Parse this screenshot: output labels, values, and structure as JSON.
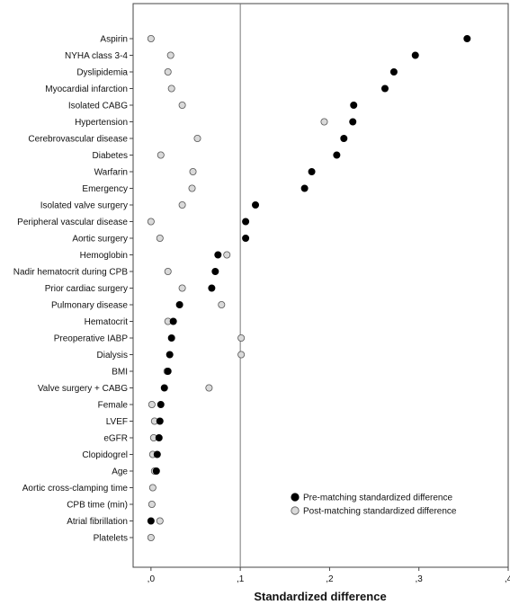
{
  "chart_data": {
    "type": "scatter",
    "xlabel": "Standardized difference",
    "xlim": [
      -0.02,
      0.4
    ],
    "xticks": [
      0,
      0.1,
      0.2,
      0.3,
      0.4
    ],
    "xtick_labels": [
      ",0",
      ",1",
      ",2",
      ",3",
      ",4"
    ],
    "reference_line_x": 0.1,
    "grid": false,
    "legend_position": "bottom-right",
    "categories": [
      "Aspirin",
      "NYHA class 3-4",
      "Dyslipidemia",
      "Myocardial infarction",
      "Isolated CABG",
      "Hypertension",
      "Cerebrovascular disease",
      "Diabetes",
      "Warfarin",
      "Emergency",
      "Isolated valve surgery",
      "Peripheral vascular disease",
      "Aortic surgery",
      "Hemoglobin",
      "Nadir hematocrit during CPB",
      "Prior cardiac surgery",
      "Pulmonary disease",
      "Hematocrit",
      "Preoperative IABP",
      "Dialysis",
      "BMI",
      "Valve surgery + CABG",
      "Female",
      "LVEF",
      "eGFR",
      "Clopidogrel",
      "Age",
      "Aortic cross-clamping time",
      "CPB time (min)",
      "Atrial fibrillation",
      "Platelets"
    ],
    "series": [
      {
        "name": "Pre-matching standardized difference",
        "color": "#000000",
        "values": [
          0.354,
          0.296,
          0.272,
          0.262,
          0.227,
          0.226,
          0.216,
          0.208,
          0.18,
          0.172,
          0.117,
          0.106,
          0.106,
          0.075,
          0.072,
          0.068,
          0.032,
          0.025,
          0.023,
          0.021,
          0.019,
          0.015,
          0.011,
          0.01,
          0.009,
          0.007,
          0.006,
          null,
          null,
          0.0,
          null
        ]
      },
      {
        "name": "Post-matching standardized difference",
        "color": "#d9d9d9",
        "values": [
          0.0,
          0.022,
          0.019,
          0.023,
          0.035,
          0.194,
          0.052,
          0.011,
          0.047,
          0.046,
          0.035,
          0.0,
          0.01,
          0.085,
          0.019,
          0.035,
          0.079,
          0.019,
          0.101,
          0.101,
          0.018,
          0.065,
          0.001,
          0.004,
          0.003,
          0.002,
          0.004,
          0.002,
          0.001,
          0.01,
          0.0
        ]
      }
    ]
  }
}
